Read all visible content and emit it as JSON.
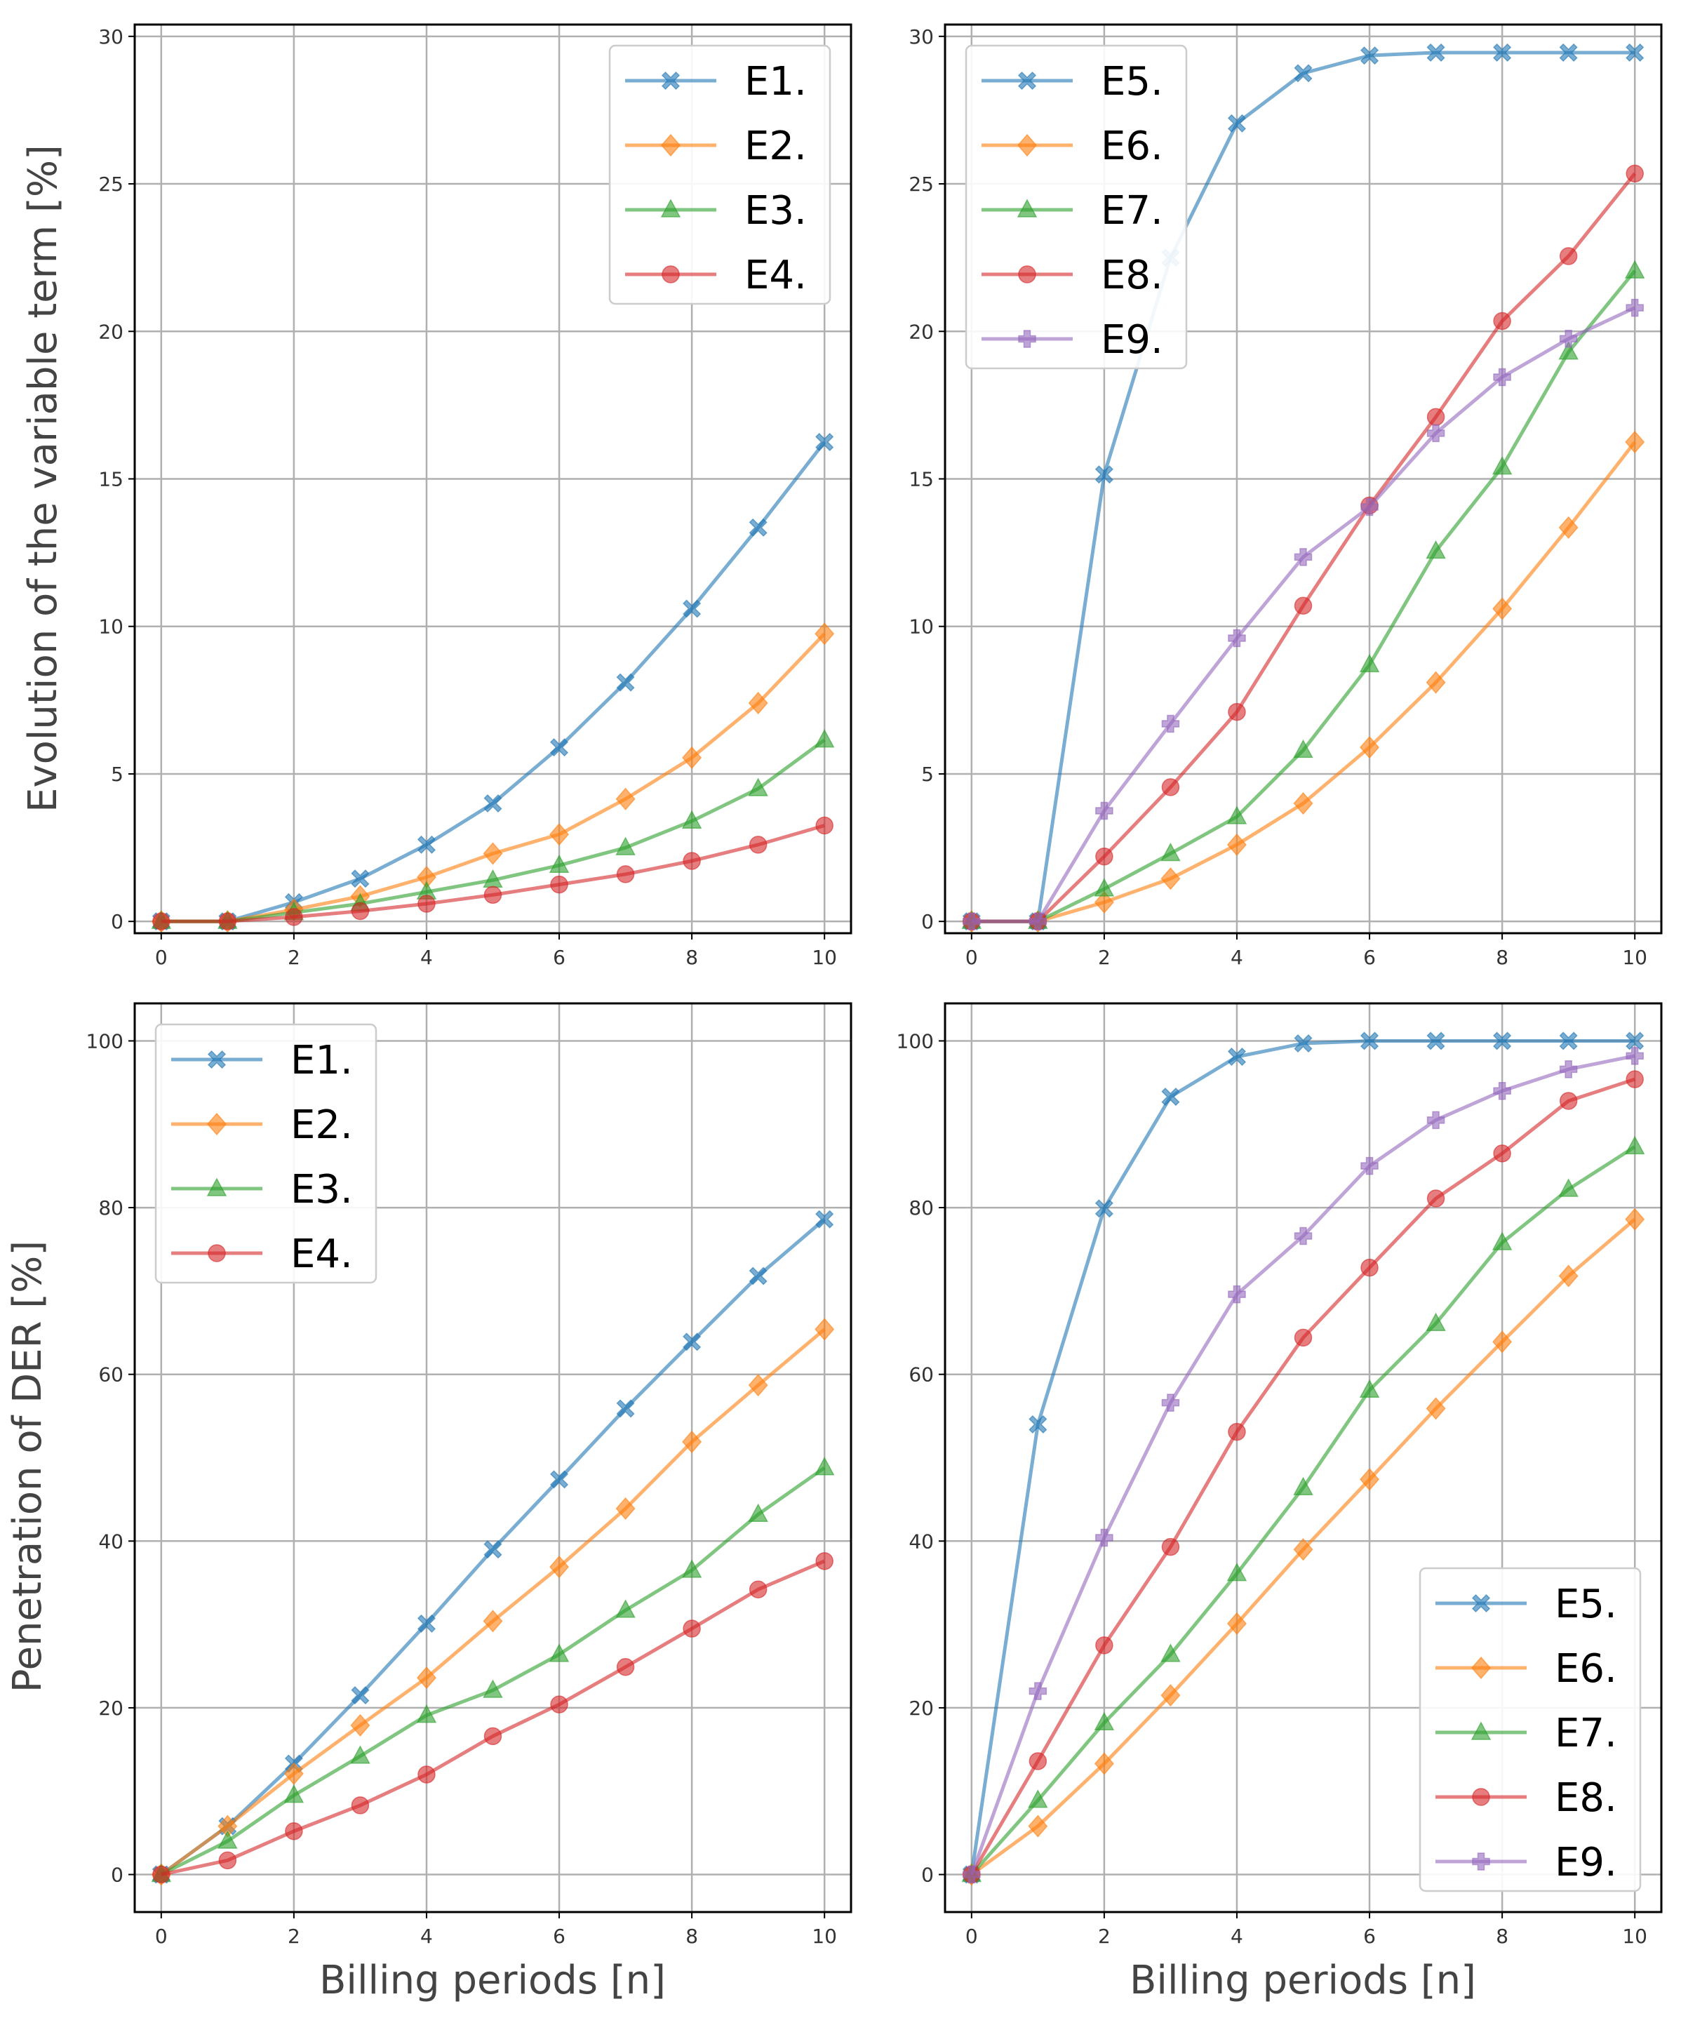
{
  "colors": {
    "E1.": "#1f77b4",
    "E2.": "#ff7f0e",
    "E3.": "#2ca02c",
    "E4.": "#d62728",
    "E5.": "#1f77b4",
    "E6.": "#ff7f0e",
    "E7.": "#2ca02c",
    "E8.": "#d62728",
    "E9.": "#9467bd"
  },
  "chart_data": [
    {
      "type": "line",
      "panel": "top-left",
      "title": "",
      "xlabel": "",
      "ylabel": "Evolution of the variable term [%]",
      "x": [
        0,
        1,
        2,
        3,
        4,
        5,
        6,
        7,
        8,
        9,
        10
      ],
      "xticks": [
        "0",
        "2",
        "4",
        "6",
        "8",
        "10"
      ],
      "yticks": [
        "0",
        "5",
        "10",
        "15",
        "20",
        "25",
        "30"
      ],
      "xlim": [
        -0.4,
        10.4
      ],
      "ylim": [
        -0.4,
        30.4
      ],
      "grid": true,
      "legend": "top-right",
      "series": [
        {
          "name": "E1.",
          "marker": "x",
          "values": [
            0,
            0,
            0.65,
            1.45,
            2.6,
            4.0,
            5.9,
            8.1,
            10.6,
            13.35,
            16.25
          ]
        },
        {
          "name": "E2.",
          "marker": "diamond",
          "values": [
            0,
            0,
            0.4,
            0.85,
            1.5,
            2.3,
            2.95,
            4.15,
            5.55,
            7.4,
            9.75
          ]
        },
        {
          "name": "E3.",
          "marker": "triangle",
          "values": [
            0,
            0,
            0.3,
            0.6,
            1.0,
            1.4,
            1.9,
            2.5,
            3.4,
            4.5,
            6.15
          ]
        },
        {
          "name": "E4.",
          "marker": "circle",
          "values": [
            0,
            0,
            0.15,
            0.35,
            0.6,
            0.9,
            1.25,
            1.6,
            2.05,
            2.6,
            3.25
          ]
        }
      ]
    },
    {
      "type": "line",
      "panel": "top-right",
      "title": "",
      "xlabel": "",
      "ylabel": "",
      "x": [
        0,
        1,
        2,
        3,
        4,
        5,
        6,
        7,
        8,
        9,
        10
      ],
      "xticks": [
        "0",
        "2",
        "4",
        "6",
        "8",
        "10"
      ],
      "yticks": [
        "0",
        "5",
        "10",
        "15",
        "20",
        "25",
        "30"
      ],
      "xlim": [
        -0.4,
        10.4
      ],
      "ylim": [
        -0.4,
        30.4
      ],
      "grid": true,
      "legend": "top-left",
      "series": [
        {
          "name": "E5.",
          "marker": "x",
          "values": [
            0,
            0,
            15.15,
            22.5,
            27.05,
            28.75,
            29.35,
            29.45,
            29.45,
            29.45,
            29.45
          ]
        },
        {
          "name": "E6.",
          "marker": "diamond",
          "values": [
            0,
            0,
            0.65,
            1.45,
            2.6,
            4.0,
            5.9,
            8.1,
            10.6,
            13.35,
            16.25
          ]
        },
        {
          "name": "E7.",
          "marker": "triangle",
          "values": [
            0,
            0,
            1.1,
            2.3,
            3.55,
            5.8,
            8.7,
            12.55,
            15.4,
            19.3,
            22.05
          ]
        },
        {
          "name": "E8.",
          "marker": "circle",
          "values": [
            0,
            0,
            2.2,
            4.55,
            7.1,
            10.7,
            14.1,
            17.1,
            20.35,
            22.55,
            25.35
          ]
        },
        {
          "name": "E9.",
          "marker": "plus",
          "values": [
            0,
            0,
            3.75,
            6.7,
            9.6,
            12.35,
            14.05,
            16.55,
            18.45,
            19.75,
            20.8
          ]
        }
      ]
    },
    {
      "type": "line",
      "panel": "bottom-left",
      "title": "",
      "xlabel": "Billing periods [n]",
      "ylabel": "Penetration of DER [%]",
      "x": [
        0,
        1,
        2,
        3,
        4,
        5,
        6,
        7,
        8,
        9,
        10
      ],
      "xticks": [
        "0",
        "2",
        "4",
        "6",
        "8",
        "10"
      ],
      "yticks": [
        "0",
        "20",
        "40",
        "60",
        "80",
        "100"
      ],
      "xlim": [
        -0.4,
        10.4
      ],
      "ylim": [
        -4.5,
        104.5
      ],
      "grid": true,
      "legend": "top-left",
      "series": [
        {
          "name": "E1.",
          "marker": "x",
          "values": [
            0,
            5.8,
            13.3,
            21.5,
            30.1,
            39.0,
            47.4,
            55.9,
            63.9,
            71.8,
            78.6
          ]
        },
        {
          "name": "E2.",
          "marker": "diamond",
          "values": [
            0,
            5.8,
            12.1,
            17.9,
            23.6,
            30.4,
            36.9,
            43.9,
            51.9,
            58.7,
            65.4
          ]
        },
        {
          "name": "E3.",
          "marker": "triangle",
          "values": [
            0,
            4.0,
            9.5,
            14.2,
            19.1,
            22.1,
            26.4,
            31.7,
            36.5,
            43.2,
            48.8
          ]
        },
        {
          "name": "E4.",
          "marker": "circle",
          "values": [
            0,
            1.7,
            5.2,
            8.3,
            12.0,
            16.6,
            20.4,
            24.9,
            29.5,
            34.2,
            37.6
          ]
        }
      ]
    },
    {
      "type": "line",
      "panel": "bottom-right",
      "title": "",
      "xlabel": "Billing periods [n]",
      "ylabel": "",
      "x": [
        0,
        1,
        2,
        3,
        4,
        5,
        6,
        7,
        8,
        9,
        10
      ],
      "xticks": [
        "0",
        "2",
        "4",
        "6",
        "8",
        "10"
      ],
      "yticks": [
        "0",
        "20",
        "40",
        "60",
        "80",
        "100"
      ],
      "xlim": [
        -0.4,
        10.4
      ],
      "ylim": [
        -4.5,
        104.5
      ],
      "grid": true,
      "legend": "bottom-right",
      "series": [
        {
          "name": "E5.",
          "marker": "x",
          "values": [
            0,
            54.0,
            79.9,
            93.3,
            98.1,
            99.7,
            100,
            100,
            100,
            100,
            100
          ]
        },
        {
          "name": "E6.",
          "marker": "diamond",
          "values": [
            0,
            5.8,
            13.3,
            21.5,
            30.1,
            39.0,
            47.4,
            55.9,
            63.9,
            71.8,
            78.6
          ]
        },
        {
          "name": "E7.",
          "marker": "triangle",
          "values": [
            0,
            8.9,
            18.2,
            26.4,
            36.1,
            46.4,
            58.1,
            66.1,
            75.8,
            82.2,
            87.3
          ]
        },
        {
          "name": "E8.",
          "marker": "circle",
          "values": [
            0,
            13.6,
            27.5,
            39.3,
            53.1,
            64.4,
            72.8,
            81.1,
            86.5,
            92.8,
            95.4
          ]
        },
        {
          "name": "E9.",
          "marker": "plus",
          "values": [
            0,
            22.0,
            40.4,
            56.6,
            69.6,
            76.6,
            85.0,
            90.5,
            94.0,
            96.6,
            98.2
          ]
        }
      ]
    }
  ]
}
